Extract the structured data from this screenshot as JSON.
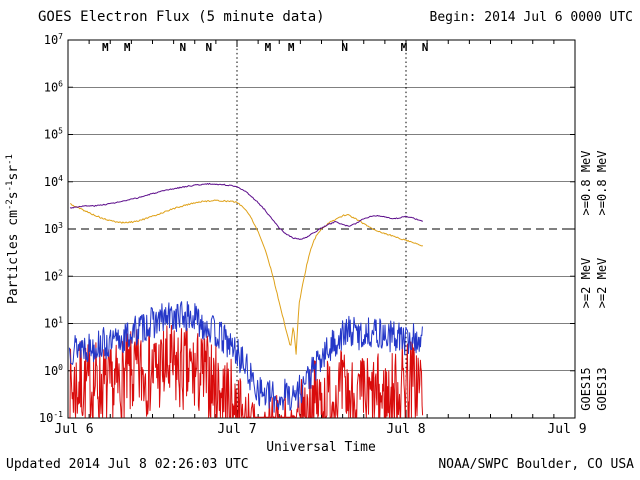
{
  "header": {
    "title": "GOES Electron Flux (5 minute data)",
    "begin_label": "Begin: 2014 Jul 6 0000 UTC"
  },
  "footer": {
    "updated": "Updated 2014 Jul 8 02:26:03 UTC",
    "credit": "NOAA/SWPC Boulder, CO USA"
  },
  "colors": {
    "goes15_08": "#5c0d8b",
    "goes13_08": "#dfa119",
    "goes15_2": "#2437c8",
    "goes13_2": "#d90b0b",
    "marker_red": "#c41111",
    "marker_blue": "#2437c8",
    "axis": "#000000"
  },
  "legend": {
    "goes15": {
      "label": "GOES15",
      "e08": ">=0.8 MeV",
      "e2": ">=2 MeV"
    },
    "goes13": {
      "label": "GOES13",
      "e08": ">=0.8 MeV",
      "e2": ">=2 MeV"
    }
  },
  "y_axis": {
    "exponents": [
      7,
      6,
      5,
      4,
      3,
      2,
      1,
      0,
      -1
    ],
    "label_parts": [
      [
        "Particles cm",
        0
      ],
      [
        "-2",
        1
      ],
      [
        "s",
        0
      ],
      [
        "-1",
        1
      ],
      [
        "sr",
        0
      ],
      [
        "-1",
        1
      ]
    ]
  },
  "chart_data": {
    "type": "line",
    "title": "GOES Electron Flux (5 minute data)",
    "xlabel": "Universal Time",
    "ylabel": "Particles cm-2 s-1 sr-1",
    "x_ticks": [
      "Jul 6",
      "Jul 7",
      "Jul 8",
      "Jul 9"
    ],
    "x_range_hours": [
      0,
      72
    ],
    "y_log_range": [
      -1,
      7
    ],
    "y_scale": "log10",
    "grid": "solid line each decade, dashed threshold at 1e3, dotted verticals at day boundaries",
    "threshold_flux": 1000,
    "dashed_vertical_hours": [
      24,
      48
    ],
    "data_end_hour": 50.4,
    "series": [
      {
        "name": "GOES13 >=2 MeV",
        "satellite": "GOES13",
        "energy": ">=2 MeV",
        "color_key": "goes13_2",
        "noise_up": 0.3,
        "noise_down": 1.6,
        "dt": 0.08,
        "seed": 7,
        "points": [
          [
            0.2,
            1.5
          ],
          [
            1,
            2
          ],
          [
            2,
            2.4
          ],
          [
            3,
            2
          ],
          [
            4,
            2.5
          ],
          [
            5,
            2
          ],
          [
            6,
            1.6
          ],
          [
            7,
            2
          ],
          [
            8,
            3
          ],
          [
            9,
            3.5
          ],
          [
            10,
            4
          ],
          [
            12,
            4.5
          ],
          [
            14,
            5
          ],
          [
            16,
            4.6
          ],
          [
            18,
            4
          ],
          [
            20,
            3
          ],
          [
            21,
            2
          ],
          [
            22,
            1.5
          ],
          [
            23,
            1
          ],
          [
            24,
            0.6
          ],
          [
            25,
            0.3
          ],
          [
            26,
            0.2
          ],
          [
            27,
            0.15
          ],
          [
            28,
            0.15
          ],
          [
            29,
            0.15
          ],
          [
            30,
            0.15
          ],
          [
            31,
            0.2
          ],
          [
            32,
            0.15
          ],
          [
            33,
            0.3
          ],
          [
            34,
            0.6
          ],
          [
            35,
            0.9
          ],
          [
            36,
            0.9
          ],
          [
            37,
            1.1
          ],
          [
            38,
            1.2
          ],
          [
            39,
            1.5
          ],
          [
            40,
            1.2
          ],
          [
            41,
            1
          ],
          [
            42,
            1.2
          ],
          [
            43,
            1
          ],
          [
            44,
            1.2
          ],
          [
            45,
            1
          ],
          [
            46,
            1.3
          ],
          [
            47,
            1.8
          ],
          [
            48,
            3
          ],
          [
            49,
            2.6
          ],
          [
            50,
            2.2
          ],
          [
            50.4,
            2
          ]
        ]
      },
      {
        "name": "GOES15 >=2 MeV",
        "satellite": "GOES15",
        "energy": ">=2 MeV",
        "color_key": "goes15_2",
        "noise_up": 0.18,
        "noise_down": 0.5,
        "dt": 0.09,
        "seed": 13,
        "points": [
          [
            0.2,
            4
          ],
          [
            1,
            4.5
          ],
          [
            2,
            5
          ],
          [
            3,
            4.5
          ],
          [
            4,
            5
          ],
          [
            5,
            5.5
          ],
          [
            6,
            5
          ],
          [
            7,
            6
          ],
          [
            8,
            7
          ],
          [
            9,
            9
          ],
          [
            10,
            11
          ],
          [
            11,
            13
          ],
          [
            12,
            15
          ],
          [
            13,
            17
          ],
          [
            14,
            19
          ],
          [
            15,
            20
          ],
          [
            16,
            21
          ],
          [
            17,
            20
          ],
          [
            18,
            18
          ],
          [
            19,
            15
          ],
          [
            20,
            12
          ],
          [
            21,
            9
          ],
          [
            22,
            7
          ],
          [
            23,
            5
          ],
          [
            24,
            3.5
          ],
          [
            25,
            2
          ],
          [
            26,
            1
          ],
          [
            27,
            0.6
          ],
          [
            28,
            0.45
          ],
          [
            29,
            0.4
          ],
          [
            30,
            0.35
          ],
          [
            31,
            0.5
          ],
          [
            32,
            0.4
          ],
          [
            33,
            0.6
          ],
          [
            34,
            1
          ],
          [
            35,
            1.6
          ],
          [
            36,
            2.5
          ],
          [
            37,
            4
          ],
          [
            38,
            6
          ],
          [
            39,
            8
          ],
          [
            40,
            10
          ],
          [
            41,
            9
          ],
          [
            42,
            8
          ],
          [
            43,
            10
          ],
          [
            44,
            9
          ],
          [
            45,
            8
          ],
          [
            46,
            7.5
          ],
          [
            47,
            8
          ],
          [
            48,
            6
          ],
          [
            49,
            7
          ],
          [
            50,
            6.5
          ],
          [
            50.4,
            6
          ]
        ]
      },
      {
        "name": "GOES13 >=0.8 MeV",
        "satellite": "GOES13",
        "energy": ">=0.8 MeV",
        "color_key": "goes13_08",
        "noise_up": 0.015,
        "noise_down": 0.015,
        "dt": 0.15,
        "seed": 5,
        "points": [
          [
            0.3,
            3400
          ],
          [
            1,
            3000
          ],
          [
            2,
            2600
          ],
          [
            3,
            2200
          ],
          [
            4,
            1900
          ],
          [
            5,
            1650
          ],
          [
            6,
            1500
          ],
          [
            7,
            1400
          ],
          [
            8,
            1360
          ],
          [
            9,
            1400
          ],
          [
            10,
            1500
          ],
          [
            11,
            1650
          ],
          [
            12,
            1850
          ],
          [
            13,
            2100
          ],
          [
            14,
            2400
          ],
          [
            15,
            2700
          ],
          [
            16,
            3000
          ],
          [
            17,
            3300
          ],
          [
            18,
            3600
          ],
          [
            19,
            3800
          ],
          [
            20,
            3950
          ],
          [
            21,
            4000
          ],
          [
            22,
            3950
          ],
          [
            23,
            3850
          ],
          [
            24,
            3700
          ],
          [
            25,
            2800
          ],
          [
            26,
            1750
          ],
          [
            27,
            880
          ],
          [
            28,
            370
          ],
          [
            29,
            115
          ],
          [
            30,
            28
          ],
          [
            31,
            7
          ],
          [
            31.6,
            3.1
          ],
          [
            32,
            9
          ],
          [
            32.4,
            2.3
          ],
          [
            32.8,
            26
          ],
          [
            33.4,
            75
          ],
          [
            34,
            200
          ],
          [
            34.6,
            430
          ],
          [
            35.2,
            700
          ],
          [
            36,
            1000
          ],
          [
            37,
            1320
          ],
          [
            38,
            1620
          ],
          [
            39,
            1900
          ],
          [
            39.6,
            2020
          ],
          [
            40,
            1900
          ],
          [
            41,
            1600
          ],
          [
            42,
            1300
          ],
          [
            43,
            1060
          ],
          [
            44,
            900
          ],
          [
            45,
            800
          ],
          [
            46,
            720
          ],
          [
            47,
            640
          ],
          [
            48,
            580
          ],
          [
            49,
            520
          ],
          [
            50,
            460
          ],
          [
            50.4,
            430
          ]
        ]
      },
      {
        "name": "GOES15 >=0.8 MeV",
        "satellite": "GOES15",
        "energy": ">=0.8 MeV",
        "color_key": "goes15_08",
        "noise_up": 0.012,
        "noise_down": 0.012,
        "dt": 0.15,
        "seed": 3,
        "points": [
          [
            0.3,
            2800
          ],
          [
            2,
            3050
          ],
          [
            4,
            3100
          ],
          [
            6,
            3450
          ],
          [
            8,
            3900
          ],
          [
            10,
            4600
          ],
          [
            12,
            5600
          ],
          [
            14,
            6600
          ],
          [
            16,
            7600
          ],
          [
            18,
            8500
          ],
          [
            20,
            9000
          ],
          [
            22,
            8700
          ],
          [
            24,
            8000
          ],
          [
            25,
            6500
          ],
          [
            26,
            5000
          ],
          [
            27,
            3600
          ],
          [
            28,
            2500
          ],
          [
            29,
            1600
          ],
          [
            30,
            1050
          ],
          [
            31,
            780
          ],
          [
            32,
            640
          ],
          [
            33,
            600
          ],
          [
            34,
            680
          ],
          [
            35,
            850
          ],
          [
            36,
            1050
          ],
          [
            37,
            1250
          ],
          [
            38,
            1420
          ],
          [
            39,
            1250
          ],
          [
            40,
            1120
          ],
          [
            41,
            1350
          ],
          [
            42,
            1650
          ],
          [
            43,
            1850
          ],
          [
            44,
            1950
          ],
          [
            45,
            1800
          ],
          [
            46,
            1620
          ],
          [
            47,
            1700
          ],
          [
            48,
            1870
          ],
          [
            49,
            1700
          ],
          [
            50,
            1520
          ],
          [
            50.4,
            1450
          ]
        ]
      }
    ],
    "noon_midnight_markers": [
      {
        "t": 5.3,
        "label": "M",
        "c": "red"
      },
      {
        "t": 8.4,
        "label": "M",
        "c": "red"
      },
      {
        "t": 16.3,
        "label": "N",
        "c": "red"
      },
      {
        "t": 20.0,
        "label": "N",
        "c": "blue"
      },
      {
        "t": 28.4,
        "label": "M",
        "c": "red"
      },
      {
        "t": 31.7,
        "label": "M",
        "c": "red"
      },
      {
        "t": 39.3,
        "label": "N",
        "c": "red"
      },
      {
        "t": 47.7,
        "label": "M",
        "c": "red"
      },
      {
        "t": 50.7,
        "label": "N",
        "c": "blue"
      }
    ]
  }
}
